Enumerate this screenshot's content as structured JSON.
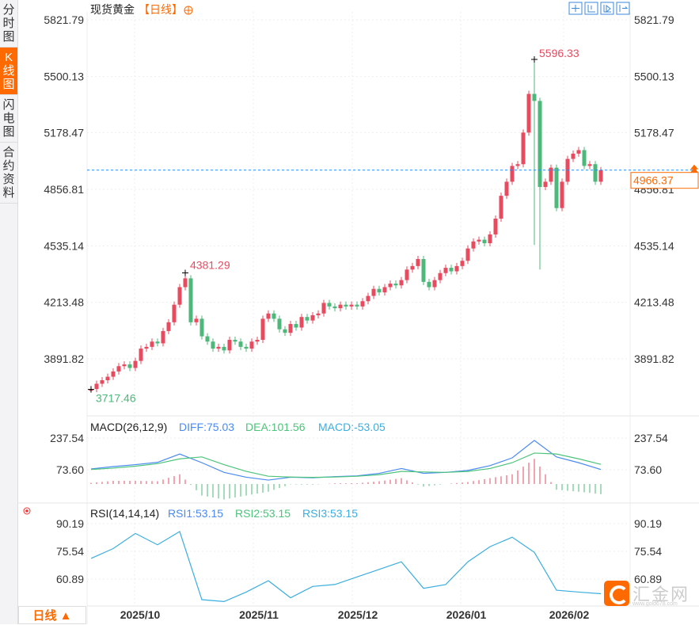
{
  "sidebar": {
    "tabs": [
      {
        "label": "分时图",
        "active": false
      },
      {
        "label": "K线图",
        "active": true
      },
      {
        "label": "闪电图",
        "active": false
      },
      {
        "label": "合约资料",
        "active": false
      }
    ]
  },
  "header": {
    "title": "现货黄金",
    "period": "【日线】",
    "add_icon": "plus-circle-icon"
  },
  "toolbar": {
    "icons": [
      "crosshair-icon",
      "zoom-fit-icon",
      "play-icon",
      "exit-icon"
    ]
  },
  "bottom": {
    "period_button": "日线 ▲"
  },
  "logo": {
    "name": "汇金网",
    "url": "www.gold678.com"
  },
  "colors": {
    "up": "#e84a5f",
    "down": "#4cb87a",
    "diff": "#4a8af4",
    "dea": "#4cc47a",
    "rsi": "#3aaee0",
    "accent": "#ff6a00",
    "lastline": "#1a8cff"
  },
  "chart_data": [
    {
      "type": "candlestick",
      "title": "现货黄金",
      "yticks": [
        "5821.79",
        "5500.13",
        "5178.47",
        "4856.81",
        "4535.14",
        "4213.48",
        "3891.82"
      ],
      "ylim": [
        3891.82,
        5821.79
      ],
      "xticks": [
        "2025/10",
        "2025/11",
        "2025/12",
        "2026/01",
        "2026/02"
      ],
      "close": [
        3720,
        3750,
        3770,
        3790,
        3820,
        3850,
        3860,
        3840,
        3880,
        3950,
        3960,
        3990,
        3980,
        4050,
        4100,
        4200,
        4300,
        4350,
        4100,
        4120,
        4020,
        3990,
        3950,
        3960,
        3940,
        4000,
        3990,
        3960,
        3950,
        3990,
        4000,
        4120,
        4150,
        4120,
        4060,
        4040,
        4090,
        4070,
        4130,
        4110,
        4140,
        4150,
        4210,
        4190,
        4180,
        4200,
        4190,
        4200,
        4190,
        4220,
        4250,
        4290,
        4270,
        4300,
        4320,
        4310,
        4340,
        4400,
        4420,
        4460,
        4330,
        4300,
        4340,
        4380,
        4410,
        4390,
        4420,
        4450,
        4520,
        4560,
        4570,
        4550,
        4600,
        4690,
        4820,
        4900,
        4990,
        5000,
        5180,
        5400,
        5360,
        4870,
        4900,
        4980,
        4750,
        4900,
        5030,
        5060,
        5080,
        4990,
        5000,
        4900,
        4966.37
      ],
      "annotations": {
        "high": "5596.33",
        "low": "3717.46",
        "local_high": "4381.29",
        "last": "4966.37"
      }
    },
    {
      "type": "line",
      "title": "MACD(26,12,9)",
      "legend": {
        "diff": "DIFF:75.03",
        "dea": "DEA:101.56",
        "macd": "MACD:-53.05"
      },
      "yticks": [
        "237.54",
        "73.60"
      ],
      "diff": [
        78,
        90,
        100,
        112,
        155,
        110,
        60,
        35,
        20,
        35,
        32,
        38,
        42,
        55,
        80,
        55,
        60,
        70,
        95,
        135,
        225,
        140,
        110,
        75.03
      ],
      "dea": [
        75,
        82,
        92,
        105,
        130,
        140,
        100,
        65,
        40,
        36,
        34,
        36,
        40,
        48,
        65,
        62,
        60,
        65,
        80,
        110,
        160,
        155,
        130,
        101.56
      ]
    },
    {
      "type": "line",
      "title": "RSI(14,14,14)",
      "legend": {
        "rsi1": "RSI1:53.15",
        "rsi2": "RSI2:53.15",
        "rsi3": "RSI3:53.15"
      },
      "yticks": [
        "90.19",
        "75.54",
        "60.89"
      ],
      "rsi": [
        71.8,
        77,
        85,
        79,
        86,
        50,
        49,
        54,
        60,
        51,
        57,
        58,
        62,
        66,
        70,
        56,
        58,
        70,
        78,
        83,
        75,
        55,
        54,
        53.15
      ]
    }
  ]
}
